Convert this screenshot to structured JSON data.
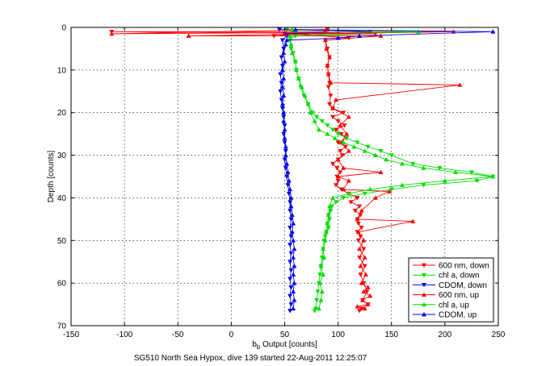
{
  "chart_data": {
    "type": "line",
    "xlabel_main": "b",
    "xlabel_sub": "b",
    "xlabel_rest": " Output [counts]",
    "ylabel": "Depth [counts]",
    "caption": "SG510 North Sea Hypox, dive 139 started 22-Aug-2011 12:25:07",
    "xlim": [
      -150,
      250
    ],
    "ylim": [
      0,
      70
    ],
    "y_reversed": true,
    "grid": true,
    "legend_placement": "bottom-right",
    "xticks": [
      "-150",
      "-100",
      "-50",
      "0",
      "50",
      "100",
      "150",
      "200",
      "250"
    ],
    "xtick_values": [
      -150,
      -100,
      -50,
      0,
      50,
      100,
      150,
      200,
      250
    ],
    "yticks": [
      "0",
      "10",
      "20",
      "30",
      "40",
      "50",
      "60",
      "70"
    ],
    "ytick_values": [
      0,
      10,
      20,
      30,
      40,
      50,
      60,
      70
    ],
    "series": [
      {
        "name": "600 nm, down",
        "color": "#ff0000",
        "marker": "triangle-down",
        "points": [
          [
            90,
            0.5
          ],
          [
            88,
            1
          ],
          [
            -112,
            1
          ],
          [
            135,
            1.5
          ],
          [
            40,
            2
          ],
          [
            60,
            1.5
          ],
          [
            110,
            2.5
          ],
          [
            88,
            3
          ],
          [
            90,
            5
          ],
          [
            92,
            7
          ],
          [
            90,
            9
          ],
          [
            91,
            11
          ],
          [
            92,
            13
          ],
          [
            91,
            14
          ],
          [
            93,
            16
          ],
          [
            92,
            18
          ],
          [
            95,
            19
          ],
          [
            105,
            20
          ],
          [
            95,
            21
          ],
          [
            100,
            22
          ],
          [
            106,
            23
          ],
          [
            98,
            24
          ],
          [
            103,
            25
          ],
          [
            108,
            26
          ],
          [
            100,
            27
          ],
          [
            107,
            28
          ],
          [
            102,
            29
          ],
          [
            104,
            30
          ],
          [
            100,
            31
          ],
          [
            95,
            32
          ],
          [
            99,
            33
          ],
          [
            102,
            34
          ],
          [
            99,
            35
          ],
          [
            100,
            36
          ],
          [
            98,
            37
          ],
          [
            103,
            38
          ],
          [
            110,
            39
          ],
          [
            118,
            40
          ],
          [
            112,
            41
          ],
          [
            120,
            42
          ],
          [
            116,
            43
          ],
          [
            121,
            44
          ],
          [
            118,
            45
          ],
          [
            119,
            46
          ],
          [
            122,
            47
          ],
          [
            118,
            48
          ],
          [
            121,
            49
          ],
          [
            119,
            50
          ],
          [
            124,
            52
          ],
          [
            120,
            54
          ],
          [
            125,
            56
          ],
          [
            121,
            58
          ],
          [
            124,
            60
          ],
          [
            127,
            62
          ],
          [
            123,
            64
          ],
          [
            128,
            65
          ],
          [
            122,
            66
          ],
          [
            120,
            66.5
          ]
        ]
      },
      {
        "name": "chl a, down",
        "color": "#00dd00",
        "marker": "triangle-down",
        "points": [
          [
            52,
            0.5
          ],
          [
            60,
            1
          ],
          [
            100,
            1.5
          ],
          [
            60,
            2
          ],
          [
            55,
            3
          ],
          [
            56,
            5
          ],
          [
            58,
            6
          ],
          [
            60,
            8
          ],
          [
            61,
            10
          ],
          [
            63,
            12
          ],
          [
            65,
            14
          ],
          [
            68,
            16
          ],
          [
            72,
            18
          ],
          [
            76,
            20
          ],
          [
            80,
            21
          ],
          [
            85,
            22
          ],
          [
            90,
            23
          ],
          [
            95,
            24
          ],
          [
            100,
            25
          ],
          [
            108,
            26
          ],
          [
            118,
            27
          ],
          [
            128,
            28
          ],
          [
            140,
            29
          ],
          [
            150,
            30
          ],
          [
            170,
            32
          ],
          [
            195,
            33
          ],
          [
            225,
            34
          ],
          [
            245,
            35
          ],
          [
            230,
            36
          ],
          [
            180,
            37
          ],
          [
            150,
            38
          ],
          [
            125,
            39
          ],
          [
            105,
            40
          ],
          [
            98,
            41
          ],
          [
            94,
            42
          ],
          [
            93,
            43
          ],
          [
            91,
            44
          ],
          [
            92,
            45
          ],
          [
            90,
            46
          ],
          [
            91,
            47
          ],
          [
            89,
            48
          ],
          [
            88,
            49
          ],
          [
            87,
            50
          ],
          [
            86,
            52
          ],
          [
            85,
            54
          ],
          [
            84,
            56
          ],
          [
            83,
            58
          ],
          [
            82,
            60
          ],
          [
            81,
            62
          ],
          [
            80,
            64
          ],
          [
            79,
            66
          ],
          [
            78,
            66.5
          ]
        ]
      },
      {
        "name": "CDOM, down",
        "color": "#0000ee",
        "marker": "triangle-down",
        "points": [
          [
            45,
            0.5
          ],
          [
            130,
            1
          ],
          [
            50,
            1.5
          ],
          [
            52,
            2
          ],
          [
            48,
            3
          ],
          [
            49,
            5
          ],
          [
            47,
            7
          ],
          [
            48,
            9
          ],
          [
            46,
            11
          ],
          [
            47,
            13
          ],
          [
            46,
            15
          ],
          [
            47,
            17
          ],
          [
            48,
            19
          ],
          [
            49,
            21
          ],
          [
            50,
            23
          ],
          [
            49,
            25
          ],
          [
            50,
            27
          ],
          [
            51,
            29
          ],
          [
            50,
            31
          ],
          [
            51,
            33
          ],
          [
            52,
            35
          ],
          [
            53,
            37
          ],
          [
            54,
            39
          ],
          [
            55,
            41
          ],
          [
            55,
            43
          ],
          [
            56,
            45
          ],
          [
            55,
            47
          ],
          [
            56,
            49
          ],
          [
            55,
            51
          ],
          [
            56,
            53
          ],
          [
            55,
            55
          ],
          [
            56,
            57
          ],
          [
            55,
            59
          ],
          [
            56,
            61
          ],
          [
            55,
            63
          ],
          [
            56,
            65
          ],
          [
            55,
            66.5
          ]
        ]
      },
      {
        "name": "600 nm, up",
        "color": "#ff0000",
        "marker": "triangle-up",
        "points": [
          [
            125,
            66
          ],
          [
            118,
            65.5
          ],
          [
            128,
            65
          ],
          [
            123,
            64
          ],
          [
            130,
            63
          ],
          [
            124,
            62
          ],
          [
            128,
            61
          ],
          [
            122,
            60
          ],
          [
            126,
            58
          ],
          [
            121,
            56
          ],
          [
            125,
            54
          ],
          [
            120,
            52
          ],
          [
            124,
            50
          ],
          [
            119,
            48
          ],
          [
            170,
            45.5
          ],
          [
            118,
            45
          ],
          [
            122,
            43
          ],
          [
            135,
            40
          ],
          [
            148,
            38.5
          ],
          [
            105,
            38
          ],
          [
            110,
            36
          ],
          [
            100,
            35
          ],
          [
            140,
            34
          ],
          [
            105,
            33
          ],
          [
            100,
            31
          ],
          [
            110,
            29
          ],
          [
            103,
            27
          ],
          [
            108,
            25
          ],
          [
            102,
            23
          ],
          [
            110,
            21
          ],
          [
            95,
            19
          ],
          [
            98,
            17
          ],
          [
            214,
            13.5
          ],
          [
            93,
            13
          ],
          [
            91,
            11
          ],
          [
            90,
            9
          ],
          [
            92,
            7
          ],
          [
            89,
            5
          ],
          [
            88,
            3
          ],
          [
            140,
            2
          ],
          [
            -40,
            2
          ],
          [
            208,
            1
          ],
          [
            -112,
            1.5
          ],
          [
            90,
            0.5
          ]
        ]
      },
      {
        "name": "chl a, up",
        "color": "#00dd00",
        "marker": "triangle-up",
        "points": [
          [
            82,
            66
          ],
          [
            84,
            64
          ],
          [
            85,
            62
          ],
          [
            83,
            60
          ],
          [
            86,
            58
          ],
          [
            84,
            56
          ],
          [
            87,
            54
          ],
          [
            86,
            52
          ],
          [
            88,
            50
          ],
          [
            89,
            48
          ],
          [
            90,
            46
          ],
          [
            91,
            44
          ],
          [
            92,
            42
          ],
          [
            95,
            40
          ],
          [
            110,
            39
          ],
          [
            130,
            38
          ],
          [
            160,
            37
          ],
          [
            200,
            36
          ],
          [
            245,
            35
          ],
          [
            210,
            34
          ],
          [
            180,
            33
          ],
          [
            160,
            32
          ],
          [
            145,
            31
          ],
          [
            135,
            30
          ],
          [
            125,
            29
          ],
          [
            115,
            28
          ],
          [
            105,
            27
          ],
          [
            97,
            26
          ],
          [
            90,
            25
          ],
          [
            82,
            24
          ],
          [
            78,
            22
          ],
          [
            74,
            20
          ],
          [
            72,
            18
          ],
          [
            69,
            16
          ],
          [
            66,
            14
          ],
          [
            63,
            12
          ],
          [
            61,
            10
          ],
          [
            60,
            8
          ],
          [
            57,
            6
          ],
          [
            56,
            4
          ],
          [
            55,
            2
          ],
          [
            175,
            1
          ],
          [
            57,
            0.5
          ]
        ]
      },
      {
        "name": "CDOM, up",
        "color": "#0000ee",
        "marker": "triangle-up",
        "points": [
          [
            58,
            66
          ],
          [
            59,
            64
          ],
          [
            58,
            62
          ],
          [
            59,
            60
          ],
          [
            58,
            58
          ],
          [
            59,
            56
          ],
          [
            58,
            54
          ],
          [
            59,
            52
          ],
          [
            58,
            50
          ],
          [
            57,
            48
          ],
          [
            58,
            46
          ],
          [
            57,
            44
          ],
          [
            56,
            42
          ],
          [
            56,
            40
          ],
          [
            55,
            38
          ],
          [
            54,
            36
          ],
          [
            53,
            34
          ],
          [
            52,
            32
          ],
          [
            51,
            30
          ],
          [
            51,
            28
          ],
          [
            50,
            26
          ],
          [
            50,
            24
          ],
          [
            49,
            22
          ],
          [
            49,
            20
          ],
          [
            48,
            18
          ],
          [
            49,
            16
          ],
          [
            48,
            14
          ],
          [
            49,
            12
          ],
          [
            48,
            10
          ],
          [
            50,
            8
          ],
          [
            49,
            6
          ],
          [
            51,
            4
          ],
          [
            52,
            3
          ],
          [
            100,
            2.5
          ],
          [
            120,
            2
          ],
          [
            245,
            1
          ],
          [
            60,
            0.5
          ]
        ]
      }
    ]
  }
}
